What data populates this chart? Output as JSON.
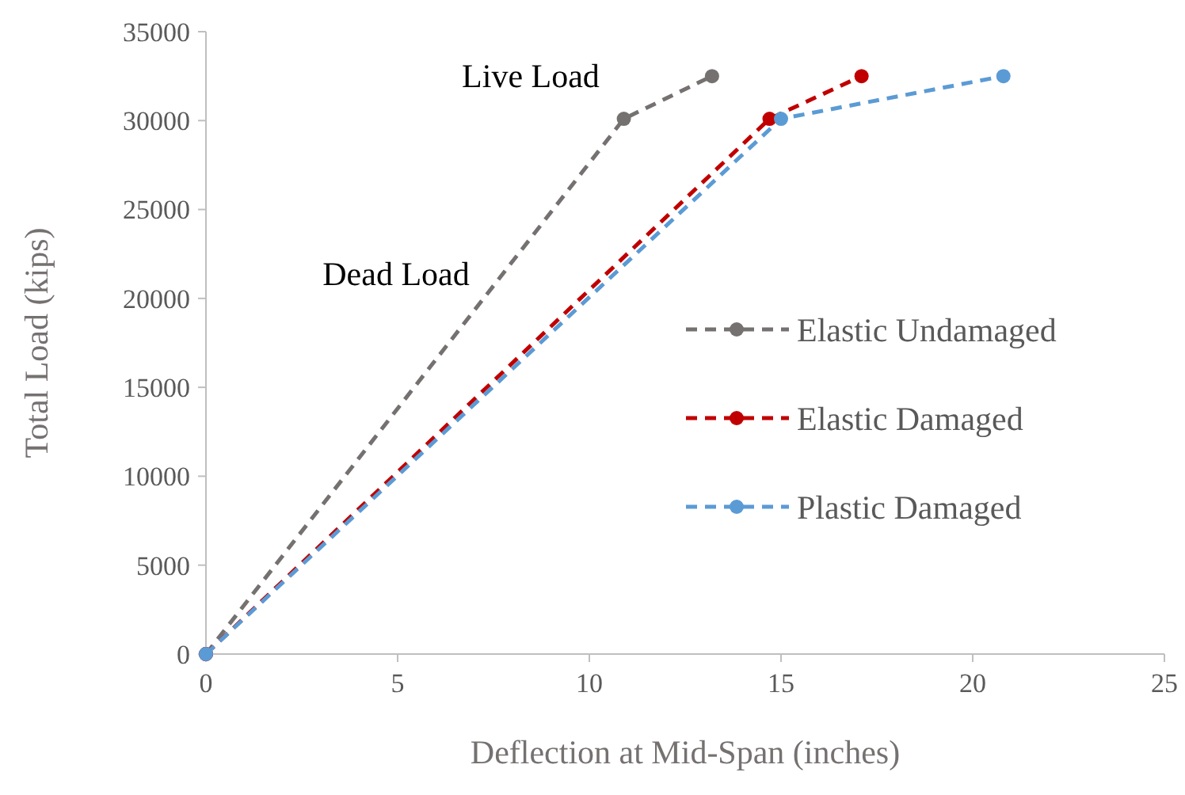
{
  "chart_data": {
    "type": "line",
    "xlabel": "Deflection at Mid-Span (inches)",
    "ylabel": "Total Load (kips)",
    "xlim": [
      0,
      25
    ],
    "xticks": [
      0,
      5,
      10,
      15,
      20,
      25
    ],
    "ylim": [
      0,
      35000
    ],
    "yticks": [
      0,
      5000,
      10000,
      15000,
      20000,
      25000,
      30000,
      35000
    ],
    "grid": false,
    "legend": "right",
    "marker": "circle",
    "line_style": "dashed",
    "series": [
      {
        "name": "Elastic Undamaged",
        "color": "#767171",
        "x": [
          0,
          10.9,
          13.2
        ],
        "values": [
          0,
          30100,
          32500
        ]
      },
      {
        "name": "Elastic Damaged",
        "color": "#c00000",
        "x": [
          0,
          14.7,
          17.1
        ],
        "values": [
          0,
          30100,
          32500
        ]
      },
      {
        "name": "Plastic Damaged",
        "color": "#5b9bd5",
        "x": [
          0,
          15.0,
          20.8
        ],
        "values": [
          0,
          30100,
          32500
        ]
      }
    ],
    "annotations": [
      "Live Load",
      "Dead Load"
    ]
  }
}
